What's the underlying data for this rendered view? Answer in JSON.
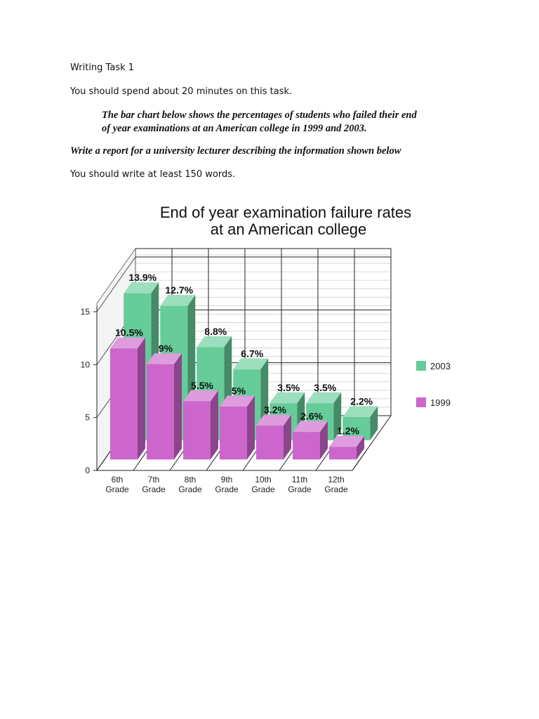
{
  "doc": {
    "heading": "Writing Task 1",
    "time_note": "You should spend about 20 minutes on this task.",
    "prompt_line1": "The bar chart below shows the percentages of students who failed their end",
    "prompt_line2": "of year examinations at an American college in 1999 and 2003.",
    "instruction": "Write a report for a university lecturer describing the information shown below",
    "word_note": "You should write at least 150 words."
  },
  "chart_data": {
    "type": "bar",
    "style": "3d-grouped",
    "title": [
      "End of year examination failure rates",
      "at an American college"
    ],
    "categories": [
      "6th Grade",
      "7th Grade",
      "8th Grade",
      "9th Grade",
      "10th Grade",
      "11th Grade",
      "12th Grade"
    ],
    "series": [
      {
        "name": "2003",
        "color": "#66cc99",
        "values": [
          13.9,
          12.7,
          8.8,
          6.7,
          3.5,
          3.5,
          2.2
        ],
        "labels": [
          "13.9%",
          "12.7%",
          "8.8%",
          "6.7%",
          "3.5%",
          "3.5%",
          "2.2%"
        ]
      },
      {
        "name": "1999",
        "color": "#cc66cc",
        "values": [
          10.5,
          9,
          5.5,
          5,
          3.2,
          2.6,
          1.2
        ],
        "labels": [
          "10.5%",
          "9%",
          "5.5%",
          "5%",
          "3.2%",
          "2.6%",
          "1.2%"
        ]
      }
    ],
    "yticks": [
      "0",
      "5",
      "10",
      "15"
    ],
    "ylim": [
      0,
      15
    ],
    "grid": true,
    "legend_position": "right"
  }
}
